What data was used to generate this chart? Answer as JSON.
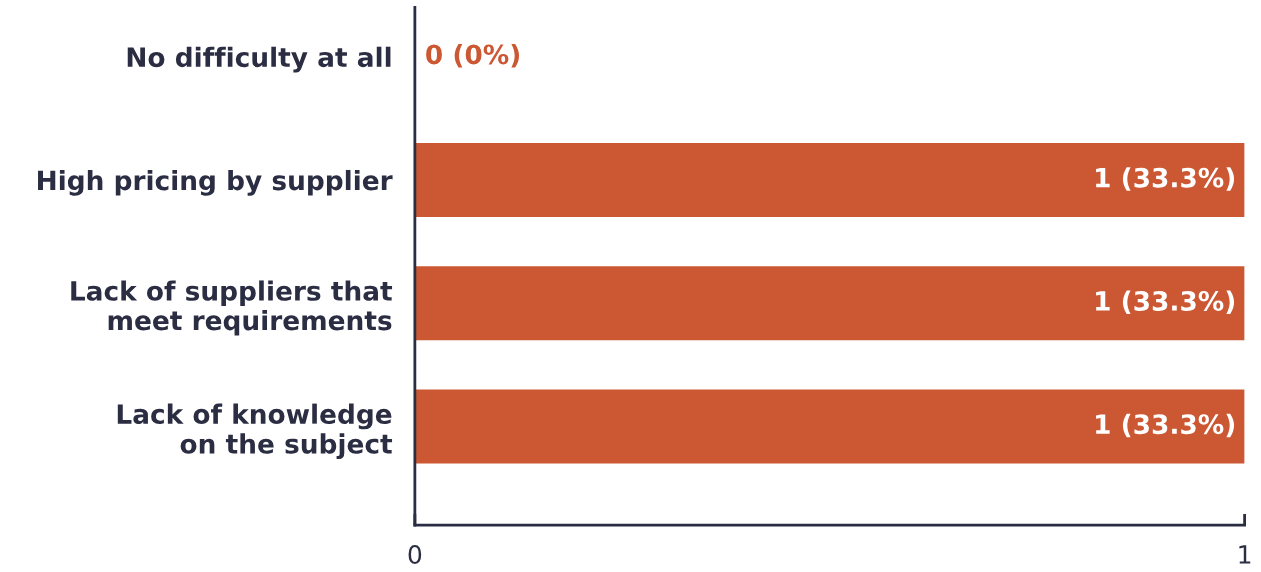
{
  "chart_data": {
    "type": "bar",
    "orientation": "horizontal",
    "categories": [
      "No difficulty at all",
      "High pricing by supplier",
      "Lack of suppliers that\nmeet requirements",
      "Lack of knowledge\non the subject"
    ],
    "values": [
      0,
      1,
      1,
      1
    ],
    "value_labels": [
      "0 (0%)",
      "1 (33.3%)",
      "1 (33.3%)",
      "1 (33.3%)"
    ],
    "color": "#cc5833",
    "xlim": [
      0,
      1
    ],
    "xticks": [
      0,
      1
    ],
    "grid": false,
    "legend": false
  }
}
